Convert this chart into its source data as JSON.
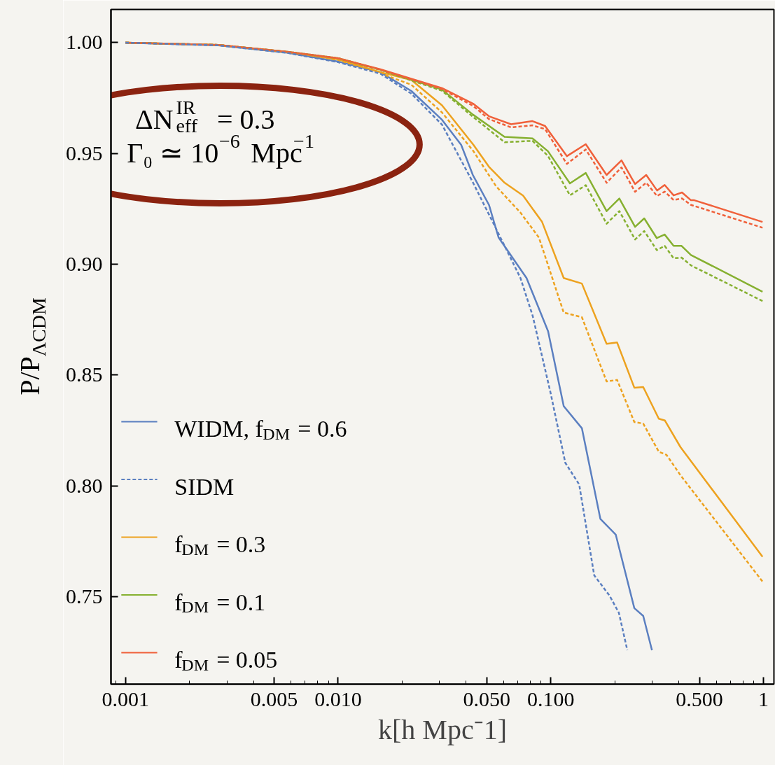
{
  "chart_data": {
    "type": "line",
    "xlabel": "k[h Mpc⁻1]",
    "ylabel": "P/P$_{ΛCDM}$",
    "annotations": [
      "ΔN$_{eff}$$^{IR}$ = 0.3",
      "Γ₀ ≃ 10$^{−6}$ Mpc$^{−1}$"
    ],
    "log": "x",
    "grid": false,
    "legend": "bottom left",
    "marker": "none",
    "xlim": [
      0.000855,
      1.12
    ],
    "ylim": [
      0.7105,
      1.015
    ],
    "xticks": [
      {
        "value": 0.001,
        "label": "0.001"
      },
      {
        "value": 0.005,
        "label": "0.005"
      },
      {
        "value": 0.01,
        "label": "0.010"
      },
      {
        "value": 0.05,
        "label": "0.050"
      },
      {
        "value": 0.1,
        "label": "0.100"
      },
      {
        "value": 0.5,
        "label": "0.500"
      },
      1
    ],
    "yticks": [
      {
        "value": 0.75,
        "label": "0.75"
      },
      {
        "value": 0.8,
        "label": "0.80"
      },
      {
        "value": 0.85,
        "label": "0.85"
      },
      {
        "value": 0.9,
        "label": "0.90"
      },
      {
        "value": 0.95,
        "label": "0.95"
      },
      {
        "value": 1.0,
        "label": "1.00"
      }
    ],
    "series": [
      {
        "name": "WIDM, f$_{DM}$ = 0.6",
        "color": "#5b7fc0",
        "line_style": "solid",
        "x": [
          0.001,
          0.00273,
          0.00576,
          0.01,
          0.0158,
          0.0221,
          0.0308,
          0.0379,
          0.043,
          0.0512,
          0.0568,
          0.0769,
          0.0971,
          0.115,
          0.14,
          0.171,
          0.202,
          0.247,
          0.272,
          0.299
        ],
        "values": [
          1.0,
          0.9988,
          0.9955,
          0.9915,
          0.9867,
          0.9782,
          0.9652,
          0.9539,
          0.9403,
          0.9268,
          0.9121,
          0.8938,
          0.8698,
          0.836,
          0.826,
          0.7851,
          0.778,
          0.7448,
          0.7413,
          0.7258
        ]
      },
      {
        "name": "SIDM",
        "color": "#5b7fc0",
        "line_style": "dashed",
        "x": [
          0.001,
          0.00273,
          0.00576,
          0.01,
          0.0158,
          0.0221,
          0.0308,
          0.043,
          0.0552,
          0.072,
          0.0822,
          0.1,
          0.117,
          0.136,
          0.16,
          0.189,
          0.209,
          0.229
        ],
        "values": [
          1.0,
          0.9988,
          0.9954,
          0.9912,
          0.986,
          0.977,
          0.963,
          0.937,
          0.9162,
          0.8938,
          0.8767,
          0.8415,
          0.8104,
          0.8006,
          0.7596,
          0.7504,
          0.7427,
          0.7258
        ]
      },
      {
        "name": "f$_{DM}$ = 0.3",
        "color": "#eda21f",
        "line_style": "solid",
        "x": [
          0.001,
          0.00273,
          0.00576,
          0.01,
          0.0158,
          0.0221,
          0.0308,
          0.0433,
          0.0512,
          0.0606,
          0.0741,
          0.091,
          0.115,
          0.14,
          0.183,
          0.205,
          0.247,
          0.272,
          0.322,
          0.344,
          0.407,
          0.99
        ],
        "values": [
          1.0,
          0.999,
          0.9958,
          0.9925,
          0.9867,
          0.9832,
          0.9717,
          0.9539,
          0.944,
          0.9368,
          0.931,
          0.9191,
          0.8938,
          0.8913,
          0.8641,
          0.8647,
          0.8443,
          0.8446,
          0.8303,
          0.8295,
          0.8175,
          0.768
        ]
      },
      {
        "color": "#eda21f",
        "line_style": "dashed",
        "x": [
          0.001,
          0.00273,
          0.00576,
          0.01,
          0.0158,
          0.0221,
          0.0308,
          0.0433,
          0.0552,
          0.072,
          0.0879,
          0.115,
          0.14,
          0.183,
          0.205,
          0.247,
          0.272,
          0.322,
          0.35,
          0.407,
          0.99
        ],
        "values": [
          1.0,
          0.999,
          0.9957,
          0.9922,
          0.9862,
          0.981,
          0.9685,
          0.951,
          0.9353,
          0.9233,
          0.9121,
          0.8782,
          0.8761,
          0.8471,
          0.8478,
          0.8288,
          0.8281,
          0.8154,
          0.814,
          0.8048,
          0.7568
        ]
      },
      {
        "name": "f$_{DM}$ = 0.1",
        "color": "#86b030",
        "line_style": "solid",
        "x": [
          0.001,
          0.00273,
          0.00576,
          0.01,
          0.0158,
          0.0308,
          0.0431,
          0.0606,
          0.082,
          0.097,
          0.123,
          0.146,
          0.183,
          0.21,
          0.249,
          0.275,
          0.315,
          0.343,
          0.378,
          0.412,
          0.456,
          0.99
        ],
        "values": [
          1.0,
          0.999,
          0.9959,
          0.993,
          0.9878,
          0.9788,
          0.9675,
          0.9575,
          0.9568,
          0.951,
          0.9365,
          0.9412,
          0.924,
          0.9297,
          0.9169,
          0.9207,
          0.9118,
          0.9134,
          0.9083,
          0.9083,
          0.9042,
          0.8876
        ]
      },
      {
        "color": "#86b030",
        "line_style": "dashed",
        "x": [
          0.001,
          0.00273,
          0.00576,
          0.01,
          0.0158,
          0.0308,
          0.0431,
          0.0606,
          0.082,
          0.097,
          0.123,
          0.146,
          0.183,
          0.21,
          0.249,
          0.275,
          0.315,
          0.343,
          0.378,
          0.412,
          0.456,
          0.99
        ],
        "values": [
          1.0,
          0.999,
          0.9959,
          0.993,
          0.9877,
          0.9783,
          0.9665,
          0.9551,
          0.9557,
          0.9489,
          0.9311,
          0.9357,
          0.9183,
          0.924,
          0.9112,
          0.915,
          0.9064,
          0.9083,
          0.9027,
          0.903,
          0.8995,
          0.8834
        ]
      },
      {
        "name": "f$_{DM}$ = 0.05",
        "color": "#f0603a",
        "line_style": "solid",
        "x": [
          0.001,
          0.00273,
          0.00576,
          0.01,
          0.0158,
          0.0308,
          0.0431,
          0.0512,
          0.065,
          0.082,
          0.094,
          0.119,
          0.146,
          0.183,
          0.215,
          0.249,
          0.281,
          0.316,
          0.343,
          0.378,
          0.414,
          0.456,
          0.473,
          0.99
        ],
        "values": [
          1.0,
          0.999,
          0.9959,
          0.993,
          0.988,
          0.9795,
          0.9725,
          0.9668,
          0.9632,
          0.9646,
          0.9624,
          0.9488,
          0.9542,
          0.9403,
          0.9469,
          0.9362,
          0.9403,
          0.9333,
          0.9358,
          0.9311,
          0.9324,
          0.9289,
          0.9289,
          0.9191
        ]
      },
      {
        "color": "#f0603a",
        "line_style": "dashed",
        "x": [
          0.001,
          0.00273,
          0.00576,
          0.01,
          0.0158,
          0.0308,
          0.0431,
          0.0512,
          0.065,
          0.082,
          0.094,
          0.119,
          0.146,
          0.183,
          0.215,
          0.249,
          0.281,
          0.316,
          0.343,
          0.378,
          0.414,
          0.456,
          0.99
        ],
        "values": [
          1.0,
          0.999,
          0.9959,
          0.993,
          0.9878,
          0.979,
          0.9715,
          0.9655,
          0.9618,
          0.9627,
          0.961,
          0.9453,
          0.9518,
          0.9368,
          0.9437,
          0.9327,
          0.9368,
          0.9308,
          0.9328,
          0.929,
          0.9297,
          0.9268,
          0.9165
        ]
      }
    ]
  }
}
